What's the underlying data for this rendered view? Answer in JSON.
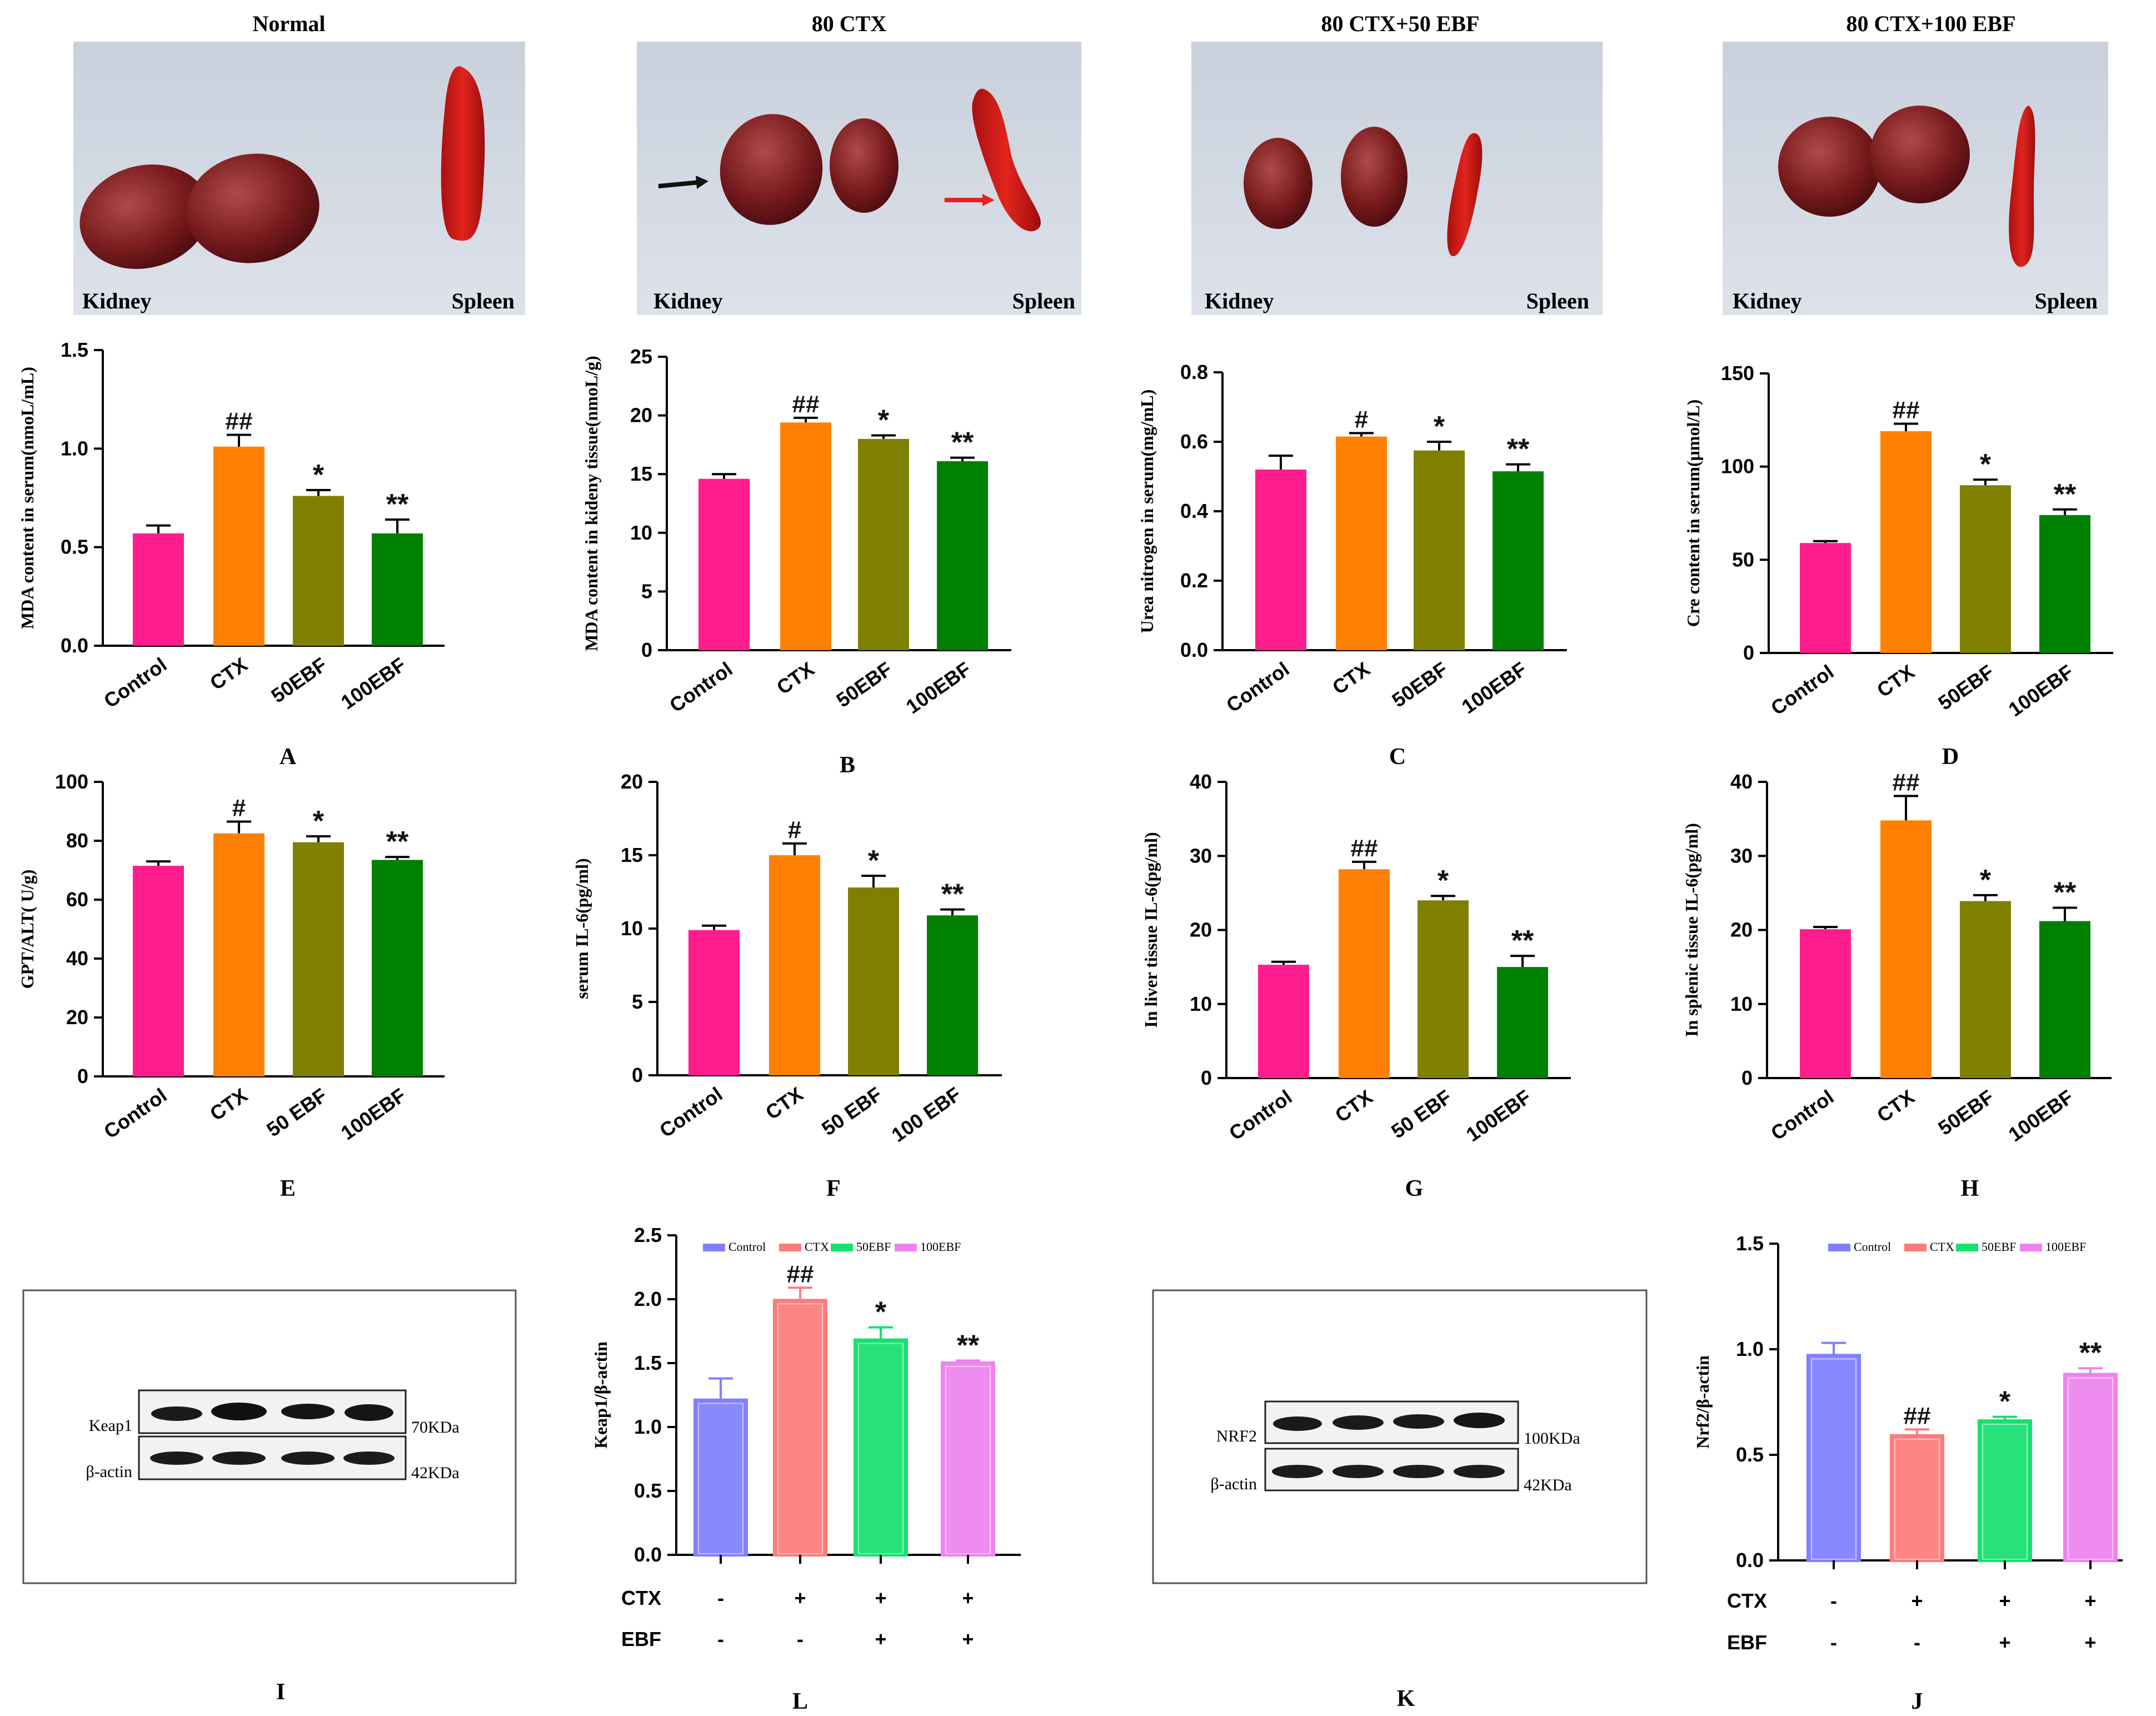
{
  "photos": [
    {
      "title": "Normal",
      "kidney_label": "Kidney",
      "spleen_label": "Spleen"
    },
    {
      "title": "80 CTX",
      "kidney_label": "Kidney",
      "spleen_label": "Spleen"
    },
    {
      "title": "80 CTX+50 EBF",
      "kidney_label": "Kidney",
      "spleen_label": "Spleen"
    },
    {
      "title": "80 CTX+100 EBF",
      "kidney_label": "Kidney",
      "spleen_label": "Spleen"
    }
  ],
  "colors": {
    "control": "#ff1c8d",
    "ctx": "#ff8000",
    "ebf50": "#808000",
    "ebf100": "#008000",
    "wb_control": "#7f7fff",
    "wb_ctx": "#ff7b7b",
    "wb_ebf50": "#15e070",
    "wb_ebf100": "#ee82ee"
  },
  "chart_data": [
    {
      "panel": "A",
      "type": "bar",
      "ylabel": "MDA content in serum(nmoL/mL)",
      "categories": [
        "Control",
        "CTX",
        "50EBF",
        "100EBF"
      ],
      "values": [
        0.57,
        1.01,
        0.76,
        0.57
      ],
      "errors": [
        0.04,
        0.06,
        0.03,
        0.07
      ],
      "significance": [
        "",
        "##",
        "*",
        "**"
      ],
      "ylim": [
        0,
        1.5
      ],
      "yticks": [
        "0.0",
        "0.5",
        "1.0",
        "1.5"
      ]
    },
    {
      "panel": "B",
      "type": "bar",
      "ylabel": "MDA content in kideny tissue(nmoL/g)",
      "categories": [
        "Control",
        "CTX",
        "50EBF",
        "100EBF"
      ],
      "values": [
        14.6,
        19.4,
        18.0,
        16.1
      ],
      "errors": [
        0.4,
        0.4,
        0.3,
        0.3
      ],
      "significance": [
        "",
        "##",
        "*",
        "**"
      ],
      "ylim": [
        0,
        25
      ],
      "yticks": [
        "0",
        "5",
        "10",
        "15",
        "20",
        "25"
      ]
    },
    {
      "panel": "C",
      "type": "bar",
      "ylabel": "Urea nitrogen in serum(mg/mL)",
      "categories": [
        "Control",
        "CTX",
        "50EBF",
        "100EBF"
      ],
      "values": [
        0.52,
        0.615,
        0.575,
        0.515
      ],
      "errors": [
        0.04,
        0.01,
        0.025,
        0.02
      ],
      "significance": [
        "",
        "#",
        "*",
        "**"
      ],
      "ylim": [
        0,
        0.8
      ],
      "yticks": [
        "0.0",
        "0.2",
        "0.4",
        "0.6",
        "0.8"
      ]
    },
    {
      "panel": "D",
      "type": "bar",
      "ylabel": "Cre content in serum(μmol/L)",
      "categories": [
        "Control",
        "CTX",
        "50EBF",
        "100EBF"
      ],
      "values": [
        59,
        119,
        90,
        74
      ],
      "errors": [
        1,
        4,
        3,
        3
      ],
      "significance": [
        "",
        "##",
        "*",
        "**"
      ],
      "ylim": [
        0,
        150
      ],
      "yticks": [
        "0",
        "50",
        "100",
        "150"
      ]
    },
    {
      "panel": "E",
      "type": "bar",
      "ylabel": "GPT/ALT( U/g)",
      "categories": [
        "Control",
        "CTX",
        "50 EBF",
        "100EBF"
      ],
      "values": [
        71.5,
        82.5,
        79.5,
        73.5
      ],
      "errors": [
        1.5,
        4,
        2,
        1
      ],
      "significance": [
        "",
        "#",
        "*",
        "**"
      ],
      "ylim": [
        0,
        100
      ],
      "yticks": [
        "0",
        "20",
        "40",
        "60",
        "80",
        "100"
      ]
    },
    {
      "panel": "F",
      "type": "bar",
      "ylabel": "serum IL-6(pg/ml)",
      "categories": [
        "Control",
        "CTX",
        "50 EBF",
        "100 EBF"
      ],
      "values": [
        9.9,
        15.0,
        12.8,
        10.9
      ],
      "errors": [
        0.3,
        0.8,
        0.8,
        0.4
      ],
      "significance": [
        "",
        "#",
        "*",
        "**"
      ],
      "ylim": [
        0,
        20
      ],
      "yticks": [
        "0",
        "5",
        "10",
        "15",
        "20"
      ]
    },
    {
      "panel": "G",
      "type": "bar",
      "ylabel": "In liver tissue IL-6(pg/ml)",
      "categories": [
        "Control",
        "CTX",
        "50 EBF",
        "100EBF"
      ],
      "values": [
        15.3,
        28.2,
        24.0,
        15.0
      ],
      "errors": [
        0.4,
        1.0,
        0.6,
        1.5
      ],
      "significance": [
        "",
        "##",
        "*",
        "**"
      ],
      "ylim": [
        0,
        40
      ],
      "yticks": [
        "0",
        "10",
        "20",
        "30",
        "40"
      ]
    },
    {
      "panel": "H",
      "type": "bar",
      "ylabel": "In splenic tissue IL-6(pg/ml)",
      "categories": [
        "Control",
        "CTX",
        "50EBF",
        "100EBF"
      ],
      "values": [
        20.1,
        34.8,
        23.9,
        21.2
      ],
      "errors": [
        0.3,
        3.3,
        0.8,
        1.8
      ],
      "significance": [
        "",
        "##",
        "*",
        "**"
      ],
      "ylim": [
        0,
        40
      ],
      "yticks": [
        "0",
        "10",
        "20",
        "30",
        "40"
      ]
    },
    {
      "panel": "L",
      "type": "bar",
      "ylabel": "Keap1/β-actin",
      "legend": [
        "Control",
        "CTX",
        "50EBF",
        "100EBF"
      ],
      "values": [
        1.21,
        1.99,
        1.68,
        1.5
      ],
      "errors": [
        0.17,
        0.1,
        0.1,
        0.02
      ],
      "significance": [
        "",
        "##",
        "*",
        "**"
      ],
      "ylim": [
        0,
        2.5
      ],
      "yticks": [
        "0.0",
        "0.5",
        "1.0",
        "1.5",
        "2.0",
        "2.5"
      ],
      "treatment_rows": [
        {
          "name": "CTX",
          "marks": [
            "-",
            "+",
            "+",
            "+"
          ]
        },
        {
          "name": "EBF",
          "marks": [
            "-",
            "-",
            "+",
            "+"
          ]
        }
      ]
    },
    {
      "panel": "J",
      "type": "bar",
      "ylabel": "Nrf2/β-actin",
      "legend": [
        "Control",
        "CTX",
        "50EBF",
        "100EBF"
      ],
      "values": [
        0.97,
        0.59,
        0.66,
        0.88
      ],
      "errors": [
        0.06,
        0.03,
        0.02,
        0.03
      ],
      "significance": [
        "",
        "##",
        "*",
        "**"
      ],
      "ylim": [
        0,
        1.5
      ],
      "yticks": [
        "0.0",
        "0.5",
        "1.0",
        "1.5"
      ],
      "treatment_rows": [
        {
          "name": "CTX",
          "marks": [
            "-",
            "+",
            "+",
            "+"
          ]
        },
        {
          "name": "EBF",
          "marks": [
            "-",
            "-",
            "+",
            "+"
          ]
        }
      ]
    }
  ],
  "blots": [
    {
      "panel": "I",
      "rows": [
        {
          "protein": "Keap1",
          "size": "70KDa"
        },
        {
          "protein": "β-actin",
          "size": "42KDa"
        }
      ]
    },
    {
      "panel": "K",
      "rows": [
        {
          "protein": "NRF2",
          "size": "100KDa"
        },
        {
          "protein": "β-actin",
          "size": "42KDa"
        }
      ]
    }
  ]
}
